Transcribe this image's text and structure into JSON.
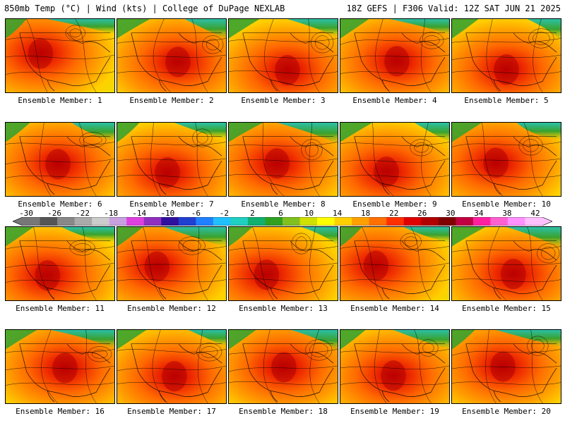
{
  "header": {
    "left": "850mb Temp (°C) | Wind (kts) | College of DuPage NEXLAB",
    "right": "18Z GEFS | F306 Valid: 12Z SAT JUN 21 2025"
  },
  "colorbar": {
    "tick_labels": [
      "-30",
      "-26",
      "-22",
      "-18",
      "-14",
      "-10",
      "-6",
      "-2",
      "2",
      "6",
      "10",
      "14",
      "18",
      "22",
      "26",
      "30",
      "34",
      "38",
      "42"
    ],
    "colors": [
      "#777777",
      "#555555",
      "#888888",
      "#aaaaaa",
      "#cccccc",
      "#c8a0e0",
      "#e040e0",
      "#9030c0",
      "#3010a0",
      "#2040d0",
      "#2080ff",
      "#20c0ff",
      "#20d0c0",
      "#10b070",
      "#30a020",
      "#80c020",
      "#d0e000",
      "#ffff00",
      "#ffd000",
      "#ffa000",
      "#ff7000",
      "#ff3000",
      "#e00000",
      "#b00000",
      "#800000",
      "#c00040",
      "#ff20a0",
      "#ff60d0",
      "#ff90ff",
      "#ffc0ff"
    ]
  },
  "panels": [
    {
      "label": "Ensemble Member: 1"
    },
    {
      "label": "Ensemble Member: 2"
    },
    {
      "label": "Ensemble Member: 3"
    },
    {
      "label": "Ensemble Member: 4"
    },
    {
      "label": "Ensemble Member: 5"
    },
    {
      "label": "Ensemble Member: 6"
    },
    {
      "label": "Ensemble Member: 7"
    },
    {
      "label": "Ensemble Member: 8"
    },
    {
      "label": "Ensemble Member: 9"
    },
    {
      "label": "Ensemble Member: 10"
    },
    {
      "label": "Ensemble Member: 11"
    },
    {
      "label": "Ensemble Member: 12"
    },
    {
      "label": "Ensemble Member: 13"
    },
    {
      "label": "Ensemble Member: 14"
    },
    {
      "label": "Ensemble Member: 15"
    },
    {
      "label": "Ensemble Member: 16"
    },
    {
      "label": "Ensemble Member: 17"
    },
    {
      "label": "Ensemble Member: 18"
    },
    {
      "label": "Ensemble Member: 19"
    },
    {
      "label": "Ensemble Member: 20"
    }
  ]
}
